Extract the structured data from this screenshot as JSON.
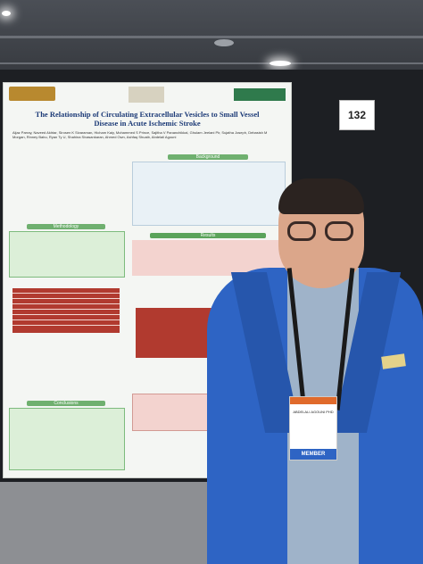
{
  "poster": {
    "title": "The Relationship of Circulating Extracellular Vesicles to Small Vessel Disease in Acute Ischemic Stroke",
    "authors": "Aijaz Parray, Naveed Akhtar, Sirosen K Sivaraman, Hicham Kaiy, Mohammed S Prince, Sajitha V Pananchikkal, Ghulam Jeelani Pir, Sujatha Joseph, Debasish M Morgan, Rinney Babu, Ryan Ty U, Shahina Sivasankaran, Ahmed Own, Ashfaq Shuaib, Abdelali Agouni",
    "sections": [
      "Background",
      "Methodology",
      "Results",
      "Conclusions"
    ],
    "board_number": "132"
  },
  "badge": {
    "name": "ABDELALI AGOUNI PHD",
    "role": "MEMBER"
  }
}
